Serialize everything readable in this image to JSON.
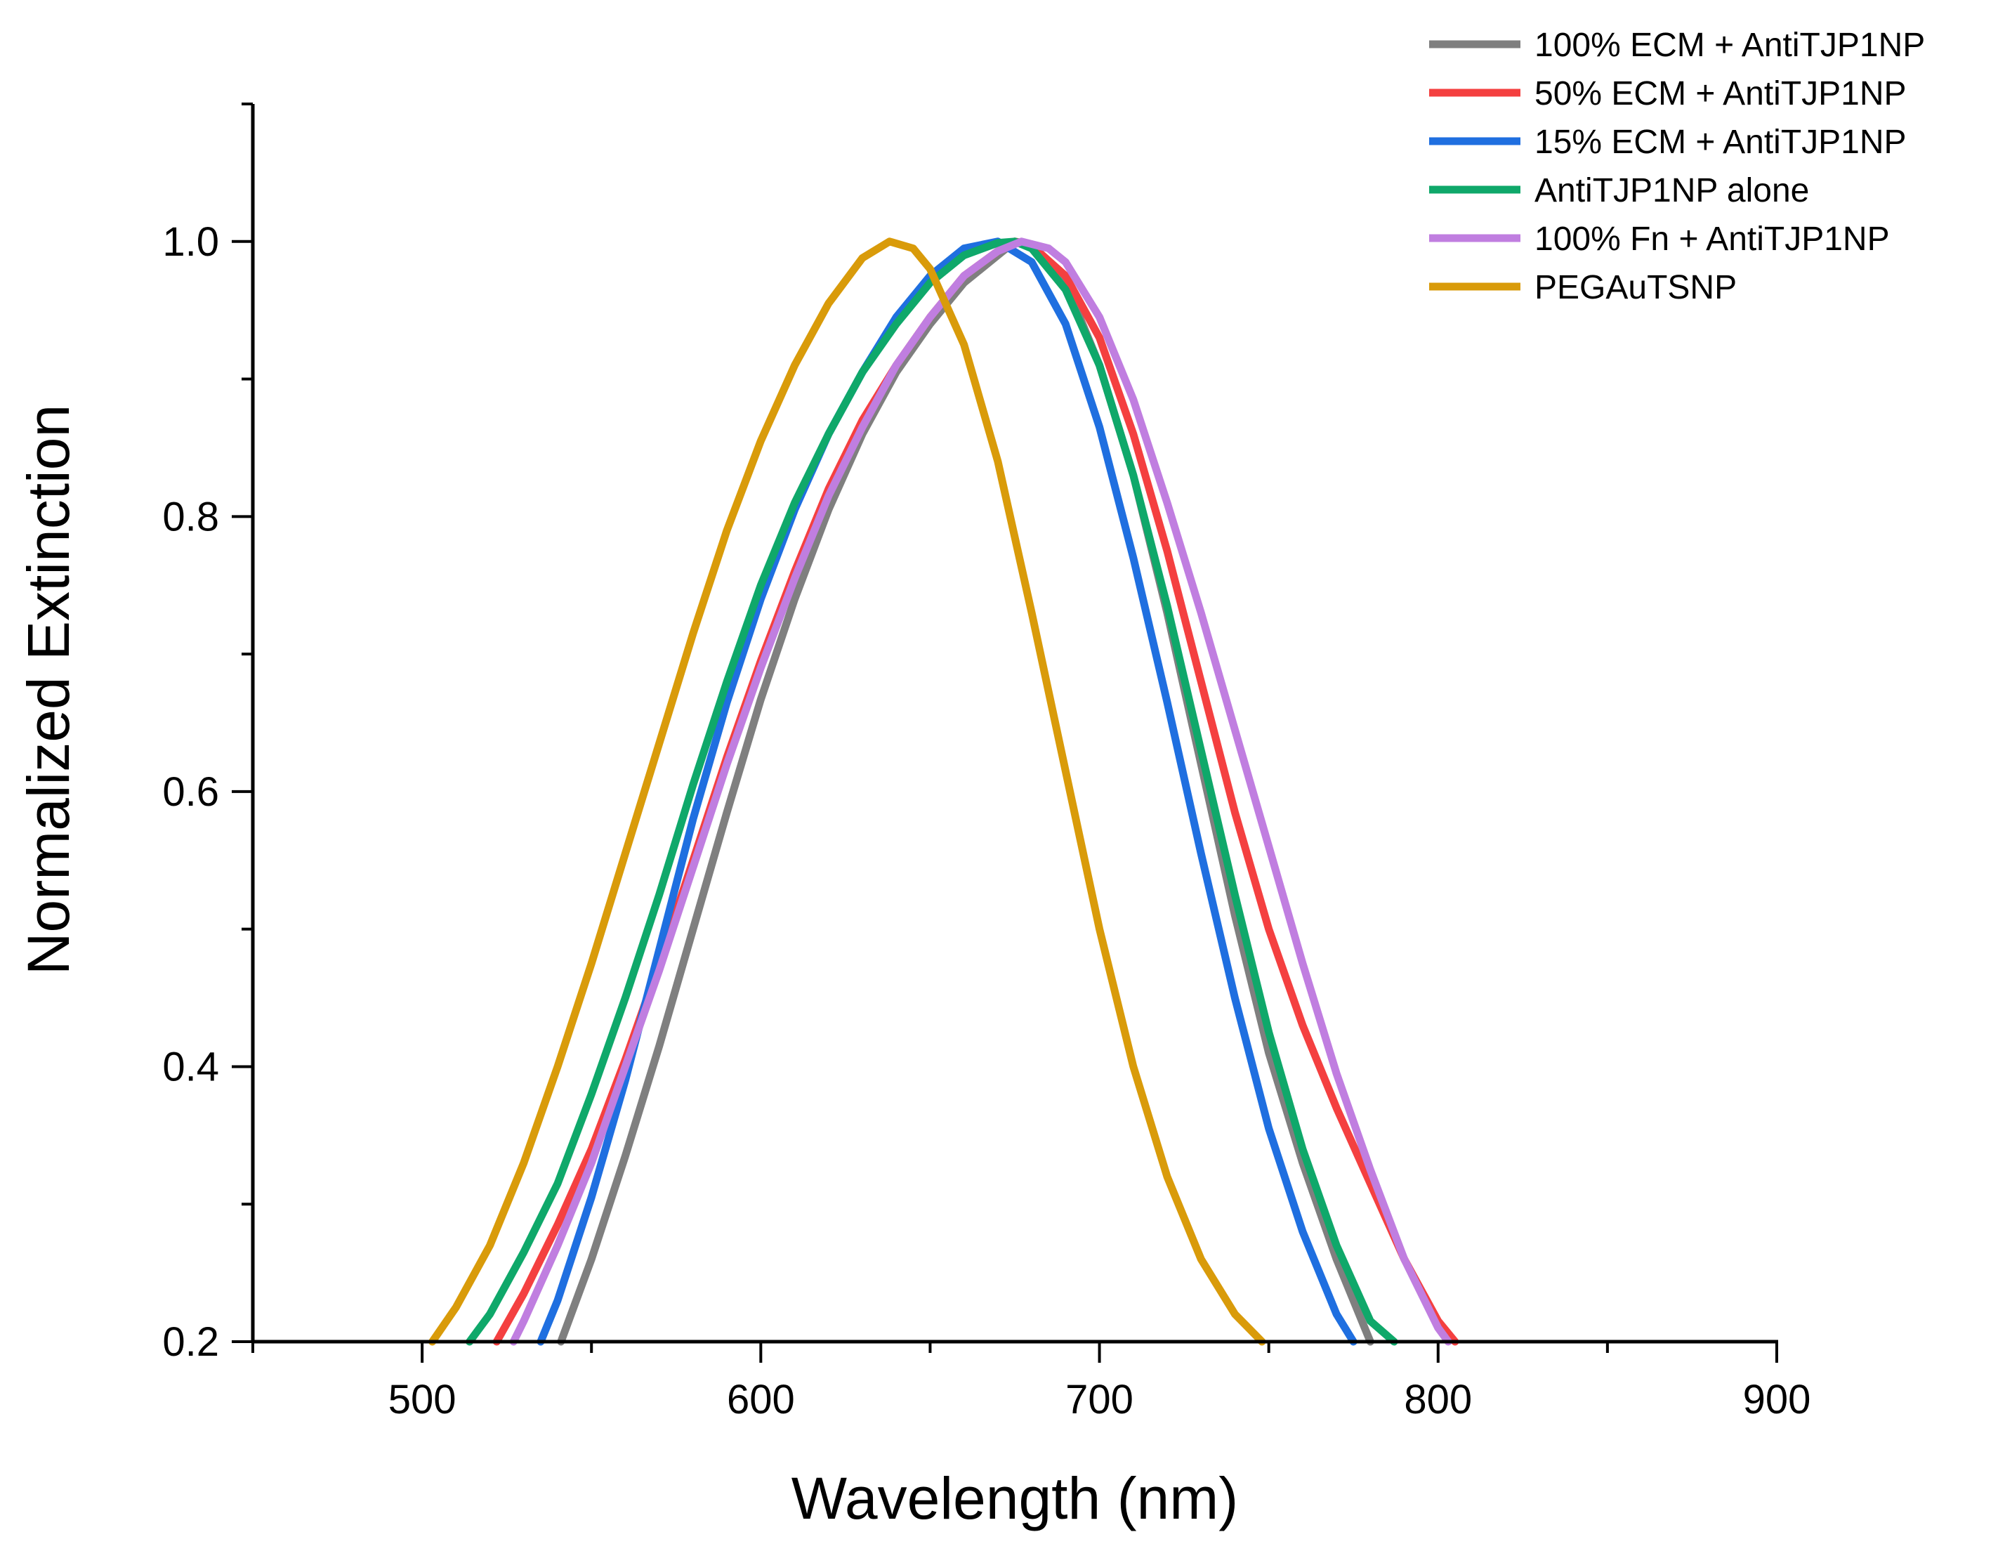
{
  "chart_data": {
    "type": "line",
    "title": "",
    "xlabel": "Wavelength (nm)",
    "ylabel": "Normalized Extinction",
    "xlim": [
      450,
      900
    ],
    "ylim": [
      0.2,
      1.1
    ],
    "xticks": [
      500,
      600,
      700,
      800,
      900
    ],
    "xtick_labels": [
      "500",
      "600",
      "700",
      "800",
      "900"
    ],
    "yticks": [
      0.2,
      0.4,
      0.6,
      0.8,
      1.0
    ],
    "ytick_labels": [
      "0.2",
      "0.4",
      "0.6",
      "0.8",
      "1.0"
    ],
    "grid": false,
    "legend_position": "top-right",
    "series": [
      {
        "name": "100% ECM + AntiTJP1NP",
        "color": "#7f7f7f",
        "x": [
          541,
          550,
          560,
          570,
          580,
          590,
          600,
          610,
          620,
          630,
          640,
          650,
          660,
          670,
          675,
          680,
          690,
          700,
          710,
          720,
          730,
          740,
          750,
          760,
          770,
          780
        ],
        "y": [
          0.2,
          0.26,
          0.335,
          0.415,
          0.5,
          0.585,
          0.667,
          0.74,
          0.805,
          0.86,
          0.905,
          0.94,
          0.97,
          0.99,
          1.0,
          0.998,
          0.97,
          0.91,
          0.83,
          0.73,
          0.62,
          0.51,
          0.41,
          0.33,
          0.26,
          0.2
        ]
      },
      {
        "name": "50% ECM + AntiTJP1NP",
        "color": "#f44040",
        "x": [
          522,
          530,
          540,
          550,
          560,
          570,
          580,
          590,
          600,
          610,
          620,
          630,
          640,
          650,
          660,
          670,
          675,
          680,
          690,
          700,
          710,
          720,
          730,
          740,
          750,
          760,
          770,
          780,
          790,
          800,
          805
        ],
        "y": [
          0.2,
          0.235,
          0.285,
          0.34,
          0.405,
          0.475,
          0.55,
          0.625,
          0.695,
          0.76,
          0.82,
          0.87,
          0.91,
          0.945,
          0.975,
          0.993,
          1.0,
          0.997,
          0.975,
          0.93,
          0.86,
          0.775,
          0.68,
          0.585,
          0.5,
          0.43,
          0.37,
          0.315,
          0.26,
          0.215,
          0.2
        ]
      },
      {
        "name": "15% ECM + AntiTJP1NP",
        "color": "#1f6fe0",
        "x": [
          535,
          540,
          550,
          560,
          570,
          580,
          590,
          600,
          610,
          620,
          630,
          640,
          650,
          660,
          670,
          680,
          690,
          700,
          710,
          720,
          730,
          740,
          750,
          760,
          770,
          775
        ],
        "y": [
          0.2,
          0.23,
          0.305,
          0.39,
          0.485,
          0.58,
          0.665,
          0.74,
          0.805,
          0.86,
          0.905,
          0.945,
          0.975,
          0.995,
          1.0,
          0.985,
          0.94,
          0.865,
          0.77,
          0.665,
          0.555,
          0.45,
          0.355,
          0.28,
          0.22,
          0.2
        ]
      },
      {
        "name": "AntiTJP1NP alone",
        "color": "#0fa86a",
        "x": [
          514,
          520,
          530,
          540,
          550,
          560,
          570,
          580,
          590,
          600,
          610,
          620,
          630,
          640,
          650,
          660,
          670,
          675,
          680,
          690,
          700,
          710,
          720,
          730,
          740,
          750,
          760,
          770,
          780,
          787
        ],
        "y": [
          0.2,
          0.22,
          0.265,
          0.315,
          0.38,
          0.45,
          0.525,
          0.605,
          0.68,
          0.75,
          0.81,
          0.86,
          0.905,
          0.94,
          0.97,
          0.99,
          0.999,
          1.0,
          0.995,
          0.965,
          0.91,
          0.83,
          0.735,
          0.63,
          0.525,
          0.425,
          0.34,
          0.27,
          0.215,
          0.2
        ]
      },
      {
        "name": "100% Fn + AntiTJP1NP",
        "color": "#c07ee0",
        "x": [
          527,
          530,
          540,
          550,
          560,
          570,
          580,
          590,
          600,
          610,
          620,
          630,
          640,
          650,
          660,
          670,
          677,
          685,
          690,
          700,
          710,
          720,
          730,
          740,
          750,
          760,
          770,
          780,
          790,
          800,
          803
        ],
        "y": [
          0.2,
          0.215,
          0.27,
          0.33,
          0.4,
          0.47,
          0.545,
          0.62,
          0.69,
          0.755,
          0.815,
          0.865,
          0.91,
          0.945,
          0.975,
          0.993,
          1.0,
          0.995,
          0.985,
          0.945,
          0.885,
          0.81,
          0.73,
          0.645,
          0.56,
          0.475,
          0.395,
          0.325,
          0.26,
          0.21,
          0.2
        ]
      },
      {
        "name": "PEGAuTSNP",
        "color": "#d99b0a",
        "x": [
          503,
          510,
          520,
          530,
          540,
          550,
          560,
          570,
          580,
          590,
          600,
          610,
          620,
          630,
          638,
          645,
          650,
          660,
          670,
          680,
          690,
          700,
          710,
          720,
          730,
          740,
          748
        ],
        "y": [
          0.2,
          0.225,
          0.27,
          0.33,
          0.4,
          0.475,
          0.555,
          0.635,
          0.715,
          0.79,
          0.855,
          0.91,
          0.955,
          0.988,
          1.0,
          0.995,
          0.98,
          0.925,
          0.84,
          0.73,
          0.615,
          0.5,
          0.4,
          0.32,
          0.26,
          0.22,
          0.2
        ]
      }
    ]
  }
}
